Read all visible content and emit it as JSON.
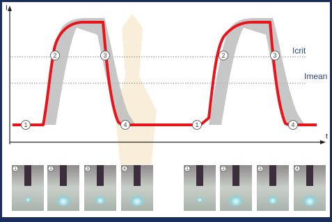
{
  "axis": {
    "y_label": "I",
    "x_label": "t"
  },
  "levels": {
    "critical": "Icrit",
    "mean": "Imean"
  },
  "markers": [
    "1",
    "2",
    "3",
    "4",
    "1",
    "2",
    "3",
    "4"
  ],
  "photo_labels": [
    "1",
    "2",
    "3",
    "4",
    "1",
    "2",
    "3",
    "4"
  ]
}
